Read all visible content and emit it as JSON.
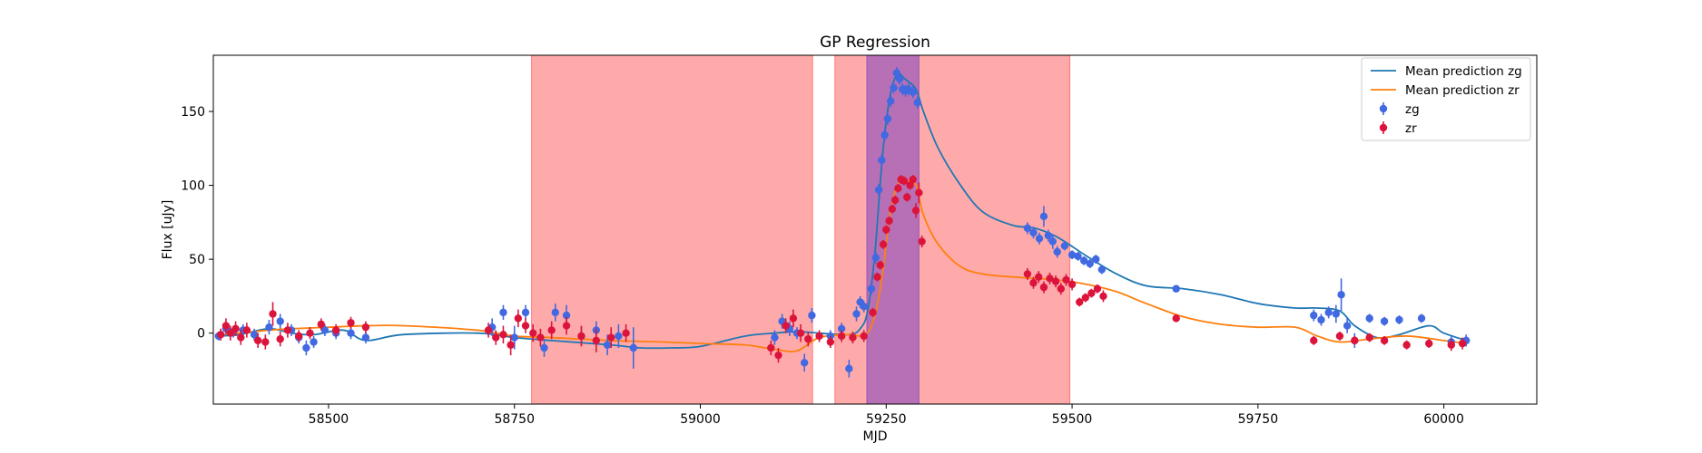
{
  "chart_data": {
    "type": "scatter",
    "title": "GP Regression",
    "xlabel": "MJD",
    "ylabel": "Flux [uJy]",
    "xlim": [
      58345,
      60125
    ],
    "ylim": [
      -48,
      188
    ],
    "xticks": [
      58500,
      58750,
      59000,
      59250,
      59500,
      59750,
      60000
    ],
    "yticks": [
      0,
      50,
      100,
      150
    ],
    "grid": false,
    "legend_position": "top-right",
    "shaded_regions": [
      {
        "x0": 58773,
        "x1": 59151,
        "color": "#ff5555",
        "opacity": 0.5
      },
      {
        "x0": 59181,
        "x1": 59497,
        "color": "#ff5555",
        "opacity": 0.5
      },
      {
        "x0": 59224,
        "x1": 59294,
        "color": "#7b3fbf",
        "opacity": 0.55
      }
    ],
    "series": [
      {
        "name": "Mean prediction zg",
        "kind": "line",
        "color": "#1f77b4",
        "x": [
          58352,
          58380,
          58420,
          58450,
          58480,
          58520,
          58550,
          58600,
          58700,
          58750,
          58800,
          58880,
          58920,
          58960,
          59000,
          59060,
          59100,
          59130,
          59160,
          59200,
          59215,
          59225,
          59235,
          59245,
          59255,
          59265,
          59275,
          59290,
          59300,
          59320,
          59350,
          59380,
          59420,
          59450,
          59480,
          59520,
          59560,
          59600,
          59650,
          59700,
          59750,
          59800,
          59830,
          59860,
          59880,
          59910,
          59940,
          59980,
          60000,
          60030
        ],
        "y": [
          -2,
          -1,
          3,
          0,
          -1,
          2,
          -5,
          -1,
          0,
          -3,
          -5,
          -8,
          -10,
          -10,
          -9,
          -2,
          0,
          1,
          0,
          -1,
          3,
          15,
          55,
          120,
          160,
          175,
          172,
          165,
          150,
          125,
          100,
          82,
          73,
          71,
          65,
          52,
          40,
          32,
          30,
          26,
          20,
          17,
          17,
          15,
          5,
          -3,
          -1,
          5,
          0,
          -5
        ]
      },
      {
        "name": "Mean prediction zr",
        "kind": "line",
        "color": "#ff7f0e",
        "x": [
          58352,
          58380,
          58420,
          58450,
          58500,
          58550,
          58600,
          58700,
          58750,
          58800,
          58880,
          58950,
          59000,
          59060,
          59100,
          59130,
          59160,
          59200,
          59215,
          59225,
          59235,
          59245,
          59255,
          59265,
          59275,
          59290,
          59300,
          59320,
          59350,
          59380,
          59420,
          59450,
          59480,
          59520,
          59560,
          59600,
          59650,
          59700,
          59750,
          59800,
          59830,
          59860,
          59900,
          59950,
          60000,
          60030
        ],
        "y": [
          -1,
          0,
          2,
          3,
          4,
          5,
          5,
          2,
          -2,
          -3,
          -5,
          -6,
          -7,
          -8,
          -11,
          -12,
          -3,
          -1,
          -2,
          0,
          12,
          40,
          80,
          100,
          103,
          100,
          80,
          60,
          45,
          40,
          38,
          37,
          36,
          33,
          28,
          20,
          11,
          6,
          4,
          4,
          -2,
          -6,
          -4,
          -2,
          -5,
          -7
        ]
      },
      {
        "name": "zg",
        "kind": "errorbar",
        "color": "#4169e1",
        "x": [
          58352,
          58362,
          58372,
          58385,
          58400,
          58420,
          58435,
          58450,
          58460,
          58470,
          58480,
          58495,
          58510,
          58530,
          58550,
          58720,
          58735,
          58750,
          58765,
          58790,
          58805,
          58820,
          58840,
          58860,
          58875,
          58890,
          58910,
          59100,
          59110,
          59120,
          59130,
          59140,
          59150,
          59175,
          59190,
          59200,
          59210,
          59215,
          59220,
          59230,
          59236,
          59240,
          59244,
          59248,
          59252,
          59256,
          59260,
          59264,
          59268,
          59272,
          59276,
          59280,
          59286,
          59292,
          59440,
          59448,
          59456,
          59462,
          59468,
          59474,
          59480,
          59490,
          59500,
          59508,
          59516,
          59524,
          59532,
          59540,
          59640,
          59825,
          59835,
          59845,
          59855,
          59862,
          59870,
          59880,
          59900,
          59920,
          59940,
          59970,
          60010,
          60030
        ],
        "y": [
          -2,
          3,
          1,
          2,
          -1,
          4,
          8,
          2,
          -3,
          -10,
          -6,
          2,
          0,
          0,
          -3,
          4,
          14,
          -3,
          14,
          -10,
          14,
          12,
          -2,
          2,
          -8,
          -2,
          -10,
          -3,
          8,
          3,
          0,
          -20,
          12,
          -2,
          3,
          -24,
          13,
          21,
          18,
          30,
          51,
          97,
          117,
          134,
          145,
          157,
          166,
          176,
          172,
          165,
          164,
          165,
          163,
          156,
          71,
          68,
          64,
          79,
          66,
          62,
          55,
          59,
          53,
          52,
          49,
          47,
          50,
          43,
          30,
          12,
          9,
          14,
          13,
          26,
          5,
          -5,
          10,
          8,
          9,
          10,
          -6,
          -5
        ],
        "yerr": [
          3,
          4,
          4,
          4,
          4,
          5,
          5,
          4,
          4,
          5,
          4,
          4,
          4,
          4,
          4,
          6,
          5,
          8,
          5,
          6,
          6,
          7,
          6,
          6,
          7,
          8,
          14,
          5,
          5,
          5,
          4,
          6,
          5,
          4,
          4,
          6,
          5,
          4,
          4,
          4,
          4,
          4,
          4,
          4,
          4,
          4,
          4,
          4,
          4,
          4,
          4,
          4,
          4,
          4,
          4,
          4,
          4,
          7,
          4,
          5,
          4,
          3,
          3,
          3,
          3,
          3,
          3,
          3,
          2,
          4,
          4,
          4,
          6,
          11,
          5,
          5,
          3,
          3,
          3,
          3,
          4,
          4
        ]
      },
      {
        "name": "zr",
        "kind": "errorbar",
        "color": "#dc143c",
        "x": [
          58355,
          58362,
          58368,
          58375,
          58382,
          58390,
          58405,
          58415,
          58425,
          58435,
          58445,
          58460,
          58475,
          58490,
          58510,
          58530,
          58550,
          58715,
          58725,
          58735,
          58745,
          58755,
          58765,
          58775,
          58785,
          58800,
          58820,
          58840,
          58860,
          58880,
          58900,
          59095,
          59105,
          59115,
          59125,
          59135,
          59145,
          59160,
          59175,
          59190,
          59205,
          59220,
          59232,
          59238,
          59242,
          59246,
          59250,
          59254,
          59258,
          59262,
          59266,
          59270,
          59274,
          59278,
          59282,
          59286,
          59290,
          59294,
          59298,
          59440,
          59448,
          59455,
          59462,
          59470,
          59478,
          59485,
          59492,
          59500,
          59510,
          59518,
          59526,
          59534,
          59542,
          59640,
          59825,
          59860,
          59880,
          59900,
          59920,
          59950,
          59980,
          60010,
          60025
        ],
        "y": [
          -1,
          5,
          0,
          3,
          -3,
          2,
          -5,
          -6,
          13,
          -4,
          2,
          -2,
          0,
          6,
          2,
          7,
          4,
          2,
          -3,
          -1,
          -8,
          10,
          5,
          0,
          -3,
          2,
          5,
          -2,
          -5,
          -3,
          0,
          -10,
          -15,
          5,
          10,
          0,
          -4,
          -2,
          -6,
          -2,
          -3,
          -2,
          14,
          38,
          46,
          60,
          70,
          76,
          84,
          90,
          98,
          104,
          103,
          92,
          100,
          104,
          83,
          95,
          62,
          40,
          34,
          38,
          31,
          37,
          35,
          30,
          36,
          33,
          21,
          24,
          27,
          30,
          25,
          10,
          -5,
          -2,
          -5,
          -3,
          -5,
          -8,
          -7,
          -8,
          -7
        ],
        "yerr": [
          4,
          5,
          5,
          5,
          5,
          5,
          5,
          5,
          8,
          5,
          5,
          4,
          4,
          4,
          4,
          4,
          4,
          5,
          5,
          6,
          7,
          6,
          5,
          6,
          6,
          6,
          6,
          7,
          8,
          7,
          6,
          5,
          5,
          5,
          6,
          6,
          5,
          4,
          4,
          4,
          4,
          4,
          3,
          3,
          3,
          3,
          3,
          3,
          3,
          3,
          3,
          3,
          3,
          3,
          3,
          3,
          5,
          7,
          4,
          4,
          4,
          4,
          4,
          4,
          4,
          4,
          4,
          4,
          3,
          3,
          3,
          3,
          4,
          2,
          3,
          3,
          3,
          3,
          3,
          3,
          3,
          4,
          4
        ]
      }
    ]
  }
}
